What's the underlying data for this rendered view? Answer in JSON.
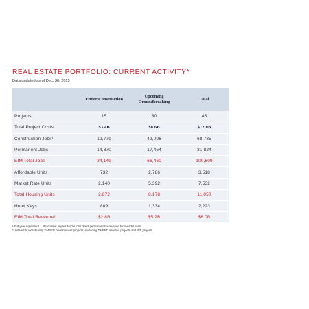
{
  "title": "REAL ESTATE PORTFOLIO: CURRENT ACTIVITY*",
  "subtitle": "Data updated as of Dec. 30, 2015",
  "columns": [
    "Under Construction",
    "Upcoming Groundbreaking",
    "Total"
  ],
  "rows": [
    {
      "label": "Projects",
      "values": [
        "15",
        "30",
        "45"
      ],
      "style": "normal"
    },
    {
      "label": "Total Project Costs",
      "values": [
        "$3.4B",
        "$8.6B",
        "$12.0B"
      ],
      "style": "bold"
    },
    {
      "label": "Construction Jobs¹",
      "values": [
        "19,779",
        "49,006",
        "68,785"
      ],
      "style": "normal"
    },
    {
      "label": "Permanent Jobs",
      "values": [
        "14,370",
        "17,454",
        "31,824"
      ],
      "style": "normal"
    },
    {
      "label": "EIM Total  Jobs",
      "values": [
        "34,149",
        "66,460",
        "100,609"
      ],
      "style": "red"
    },
    {
      "label": "Affordable Units",
      "values": [
        "732",
        "2,786",
        "3,518"
      ],
      "style": "normal"
    },
    {
      "label": "Market Rate Units",
      "values": [
        "2,140",
        "5,392",
        "7,532"
      ],
      "style": "normal"
    },
    {
      "label": "Total Housing Units",
      "values": [
        "2,872",
        "8,178",
        "11,050"
      ],
      "style": "red"
    },
    {
      "label": "Hotel Keys",
      "values": [
        "889",
        "1,334",
        "2,223"
      ],
      "style": "normal"
    },
    {
      "label": "EIM Total Revenue²",
      "values": [
        "$2.8B",
        "$5.2B",
        "$8.0B"
      ],
      "style": "red"
    }
  ],
  "footnotes": {
    "line1a": "¹ Full year equivalent",
    "line1b": "²Economic Impact Model total direct permanent tax revenue for over 30 years",
    "line2": "*Updated to include only DMPED Development projects, excluding DMPED assisted projects and IRB projects"
  }
}
